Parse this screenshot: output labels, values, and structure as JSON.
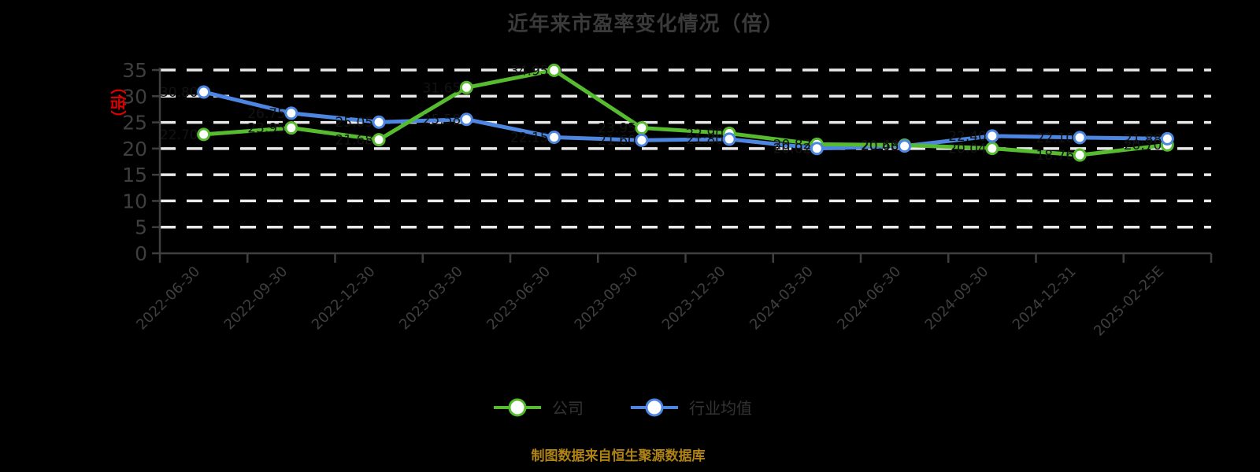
{
  "title": "近年来市盈率变化情况（倍）",
  "y_axis_label": "（倍）",
  "y_axis_label_color": "#dd0000",
  "footer": "制图数据来自恒生聚源数据库",
  "legend": {
    "items": [
      {
        "label": "公司",
        "color": "#57bb2f"
      },
      {
        "label": "行业均值",
        "color": "#4d86e0"
      }
    ]
  },
  "colors": {
    "background": "#000000",
    "title_text": "#3a3a3a",
    "axis": "#3f3f3f",
    "tick_label": "#3f3f3f",
    "gridline": "#e9e9e9",
    "company_line": "#57bb2f",
    "industry_line": "#4d86e0",
    "marker_fill": "#ffffff",
    "data_label": "#131313",
    "footer_text": "#b08314"
  },
  "chart_data": {
    "type": "line",
    "title": "近年来市盈率变化情况（倍）",
    "ylabel": "（倍）",
    "xlabel": "",
    "ylim": [
      0,
      35
    ],
    "yticks": [
      0,
      5,
      10,
      15,
      20,
      25,
      30,
      35
    ],
    "grid": "horizontal-dashed",
    "legend_position": "bottom",
    "categories": [
      "2022-06-30",
      "2022-09-30",
      "2022-12-30",
      "2023-03-30",
      "2023-06-30",
      "2023-09-30",
      "2023-12-30",
      "2024-03-30",
      "2024-06-30",
      "2024-09-30",
      "2024-12-31",
      "2025-02-25E"
    ],
    "series": [
      {
        "name": "公司",
        "color": "#57bb2f",
        "values": [
          22.7,
          23.95,
          21.68,
          31.65,
          34.95,
          23.95,
          22.9,
          20.82,
          20.66,
          20.04,
          18.76,
          20.7
        ]
      },
      {
        "name": "行业均值",
        "color": "#4d86e0",
        "values": [
          30.8,
          26.75,
          25.05,
          25.58,
          22.15,
          21.6,
          21.8,
          20.02,
          20.48,
          22.4,
          22.1,
          21.88
        ]
      }
    ]
  }
}
